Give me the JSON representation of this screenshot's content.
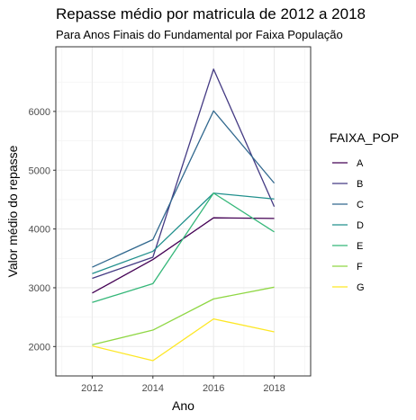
{
  "chart_data": {
    "type": "line",
    "title": "Repasse médio por matricula de 2012 a 2018",
    "subtitle": "Para Anos Finais do Fundamental por Faixa População",
    "xlabel": "Ano",
    "ylabel": "Valor médio do repasse",
    "x": [
      2012,
      2014,
      2016,
      2018
    ],
    "xlim": [
      2010.8,
      2019.2
    ],
    "ylim": [
      1500,
      7100
    ],
    "x_ticks": [
      2012,
      2014,
      2016,
      2018
    ],
    "y_ticks": [
      2000,
      3000,
      4000,
      5000,
      6000
    ],
    "grid": true,
    "legend_title": "FAIXA_POP",
    "legend_position": "right",
    "series": [
      {
        "name": "A",
        "values": [
          2910,
          3480,
          4190,
          4180
        ],
        "color": "#440154"
      },
      {
        "name": "B",
        "values": [
          3160,
          3520,
          6720,
          4380
        ],
        "color": "#443a83"
      },
      {
        "name": "C",
        "values": [
          3350,
          3820,
          6010,
          4780
        ],
        "color": "#31688e"
      },
      {
        "name": "D",
        "values": [
          3240,
          3620,
          4610,
          4510
        ],
        "color": "#21908d"
      },
      {
        "name": "E",
        "values": [
          2750,
          3070,
          4610,
          3950
        ],
        "color": "#35b779"
      },
      {
        "name": "F",
        "values": [
          2030,
          2280,
          2810,
          3010
        ],
        "color": "#8fd744"
      },
      {
        "name": "G",
        "values": [
          2010,
          1760,
          2470,
          2250
        ],
        "color": "#fde725"
      }
    ]
  }
}
